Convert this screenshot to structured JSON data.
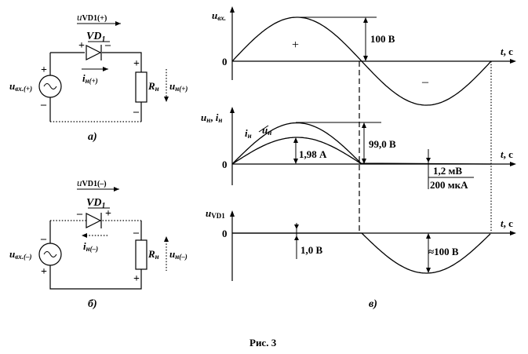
{
  "figure": {
    "caption": "Рис. 3"
  },
  "circuit_a": {
    "panel_label": "а)",
    "u_vd_main": "u",
    "u_vd_sub": "VD1(+)",
    "vd_main": "VD",
    "vd_sub": "1",
    "i_main": "i",
    "i_sub": "н(+)",
    "r_main": "R",
    "r_sub": "н",
    "uin_main": "u",
    "uin_sub": "вх.(+)",
    "uout_main": "u",
    "uout_sub": "н(+)",
    "plus": "+",
    "minus": "–"
  },
  "circuit_b": {
    "panel_label": "б)",
    "u_vd_main": "u",
    "u_vd_sub": "VD1(–)",
    "vd_main": "VD",
    "vd_sub": "1",
    "i_main": "i",
    "i_sub": "н(–)",
    "r_main": "R",
    "r_sub": "н",
    "uin_main": "u",
    "uin_sub": "вх.(–)",
    "uout_main": "u",
    "uout_sub": "н(–)",
    "plus": "+",
    "minus": "–"
  },
  "chart_data": [
    {
      "type": "line",
      "title": "",
      "ylabel_main": "u",
      "ylabel_sub": "вх.",
      "xlabel_t": "t",
      "xlabel_unit": ", с",
      "zero": "0",
      "amplitude_label": "100 В",
      "positive_sign": "+",
      "negative_sign": "–",
      "series": [
        {
          "values_peak": [
            100,
            -100
          ]
        }
      ]
    },
    {
      "type": "line",
      "ylabel": "u",
      "ylabel_sub1": "н",
      "ylabel_sep": ", ",
      "ylabel_i": "i",
      "ylabel_sub2": "н",
      "series_u_main": "u",
      "series_u_sub": "н",
      "series_i_main": "i",
      "series_i_sub": "н",
      "xlabel_t": "t",
      "xlabel_unit": ", с",
      "zero": "0",
      "voltage_peak_label": "99,0 В",
      "current_peak_label": "1,98 А",
      "reverse_u_label": "1,2 мВ",
      "reverse_i_label": "200 мкА",
      "series": [
        {
          "values_peak": [
            99.0
          ]
        },
        {
          "values_peak": [
            1.98
          ]
        }
      ]
    },
    {
      "type": "line",
      "ylabel_main": "u",
      "ylabel_sub": "VD1",
      "xlabel_t": "t",
      "xlabel_unit": ", с",
      "zero": "0",
      "forward_label": "1,0 В",
      "reverse_label": "≈100 В",
      "panel_label": "в)"
    }
  ]
}
